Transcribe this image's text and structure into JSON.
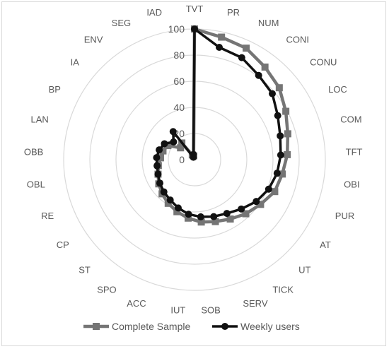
{
  "chart_data": {
    "type": "radar",
    "title": "",
    "categories": [
      "TVT",
      "PR",
      "NUM",
      "CONI",
      "CONU",
      "LOC",
      "COM",
      "TFT",
      "OBI",
      "PUR",
      "AT",
      "UT",
      "TICK",
      "SERV",
      "SOB",
      "IUT",
      "ACC",
      "SPO",
      "ST",
      "CP",
      "RE",
      "OBL",
      "OBB",
      "LAN",
      "BP",
      "IA",
      "ENV",
      "SEG",
      "IAD"
    ],
    "rlim": [
      0,
      100
    ],
    "rticks": [
      0,
      20,
      40,
      60,
      80,
      100
    ],
    "grid": true,
    "legend_position": "bottom",
    "series": [
      {
        "name": "Complete Sample",
        "color": "#757575",
        "marker": "square",
        "values": [
          100,
          96,
          94,
          89,
          85,
          79,
          74,
          71,
          68,
          66,
          61,
          57,
          53,
          50,
          48,
          45,
          42,
          39,
          36,
          33,
          30,
          28,
          26,
          25,
          23,
          14,
          16,
          4,
          3
        ]
      },
      {
        "name": "Weekly users",
        "color": "#111111",
        "marker": "circle",
        "values": [
          100,
          88,
          86,
          81,
          78,
          72,
          68,
          66,
          64,
          61,
          57,
          52,
          48,
          46,
          44,
          42,
          39,
          36,
          34,
          32,
          30,
          29,
          29,
          28,
          26,
          21,
          27,
          2,
          4
        ]
      }
    ]
  }
}
